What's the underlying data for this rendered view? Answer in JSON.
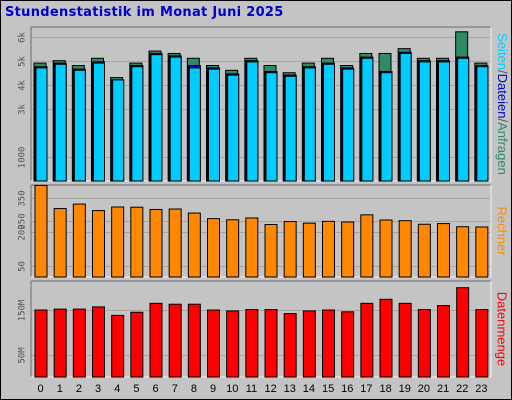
{
  "title": "Stundenstatistik im Monat Juni 2025",
  "colors": {
    "background": "#c4c4c4",
    "title": "#0000cc",
    "anfragen": "#2e8b66",
    "dateien": "#0000cc",
    "seiten": "#00ccff",
    "rechner": "#ff8800",
    "datenmenge": "#ff0000"
  },
  "chart_data": [
    {
      "type": "bar",
      "title": "Stundenstatistik im Monat Juni 2025",
      "categories": [
        "0",
        "1",
        "2",
        "3",
        "4",
        "5",
        "6",
        "7",
        "8",
        "9",
        "10",
        "11",
        "12",
        "13",
        "14",
        "15",
        "16",
        "17",
        "18",
        "19",
        "20",
        "21",
        "22",
        "23"
      ],
      "ylabel_parts": [
        "Seiten",
        "/",
        "Dateien",
        "/",
        "Anfragen"
      ],
      "ylim": [
        0,
        6400
      ],
      "ticks": [
        {
          "v": 1000,
          "label": "1000"
        },
        {
          "v": 3000,
          "label": "3k"
        },
        {
          "v": 4000,
          "label": "4k"
        },
        {
          "v": 5000,
          "label": "5k"
        },
        {
          "v": 6000,
          "label": "6k"
        }
      ],
      "grid": true,
      "series": [
        {
          "name": "Anfragen",
          "values": [
            4900,
            5000,
            4800,
            5100,
            4300,
            4900,
            5400,
            5300,
            5100,
            4800,
            4600,
            5100,
            4800,
            4500,
            4900,
            5100,
            4800,
            5300,
            5300,
            5500,
            5100,
            5100,
            6200,
            4900
          ]
        },
        {
          "name": "Dateien",
          "values": [
            4750,
            4900,
            4650,
            4950,
            4200,
            4800,
            5300,
            5200,
            4800,
            4700,
            4450,
            5000,
            4550,
            4400,
            4750,
            4900,
            4700,
            5150,
            4550,
            5350,
            5000,
            5000,
            5150,
            4800
          ]
        },
        {
          "name": "Seiten",
          "values": [
            4700,
            4850,
            4600,
            4900,
            4200,
            4750,
            5250,
            5150,
            4700,
            4650,
            4400,
            4950,
            4500,
            4350,
            4700,
            4850,
            4650,
            5100,
            4500,
            5300,
            4950,
            4950,
            5100,
            4750
          ]
        }
      ]
    },
    {
      "type": "bar",
      "categories": [
        "0",
        "1",
        "2",
        "3",
        "4",
        "5",
        "6",
        "7",
        "8",
        "9",
        "10",
        "11",
        "12",
        "13",
        "14",
        "15",
        "16",
        "17",
        "18",
        "19",
        "20",
        "21",
        "22",
        "23"
      ],
      "ylabel": "Rechner",
      "ylim": [
        0,
        410
      ],
      "ticks": [
        {
          "v": 50,
          "label": "50"
        },
        {
          "v": 200,
          "label": "200"
        },
        {
          "v": 250,
          "label": "250"
        },
        {
          "v": 350,
          "label": "350"
        }
      ],
      "grid": true,
      "series": [
        {
          "name": "Rechner",
          "values": [
            408,
            305,
            325,
            296,
            312,
            311,
            301,
            303,
            285,
            260,
            255,
            263,
            234,
            247,
            240,
            248,
            245,
            277,
            254,
            251,
            235,
            238,
            224,
            223
          ]
        }
      ]
    },
    {
      "type": "bar",
      "categories": [
        "0",
        "1",
        "2",
        "3",
        "4",
        "5",
        "6",
        "7",
        "8",
        "9",
        "10",
        "11",
        "12",
        "13",
        "14",
        "15",
        "16",
        "17",
        "18",
        "19",
        "20",
        "21",
        "22",
        "23"
      ],
      "ylabel": "Datenmenge",
      "ylim": [
        0,
        215
      ],
      "ticks": [
        {
          "v": 50,
          "label": "50M"
        },
        {
          "v": 150,
          "label": "150M"
        }
      ],
      "grid": true,
      "series": [
        {
          "name": "Datenmenge",
          "values": [
            150,
            152,
            152,
            157,
            138,
            145,
            165,
            163,
            163,
            150,
            148,
            151,
            151,
            142,
            148,
            150,
            146,
            165,
            174,
            165,
            151,
            160,
            200,
            151
          ]
        }
      ]
    }
  ]
}
